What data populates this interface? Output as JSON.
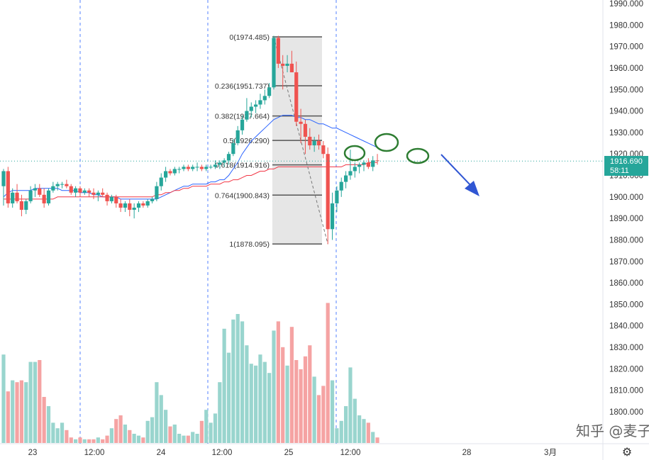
{
  "chart_data": {
    "type": "candlestick",
    "symbol_price": "1916.690",
    "countdown": "58:11",
    "y_axis": {
      "range": [
        1793,
        1992
      ],
      "tick_labels": [
        "1990.000",
        "1980.000",
        "1970.000",
        "1960.000",
        "1950.000",
        "1940.000",
        "1930.000",
        "1920.000",
        "1910.000",
        "1900.000",
        "1890.000",
        "1880.000",
        "1870.000",
        "1860.000",
        "1850.000",
        "1840.000",
        "1830.000",
        "1820.000",
        "1810.000",
        "1800.000"
      ]
    },
    "x_axis": {
      "tick_labels": [
        "23",
        "12:00",
        "24",
        "12:00",
        "25",
        "12:00",
        "28",
        "3月"
      ]
    },
    "current_price": 1916.69,
    "fibonacci": {
      "high": 1974.485,
      "low": 1878.095,
      "levels": [
        {
          "label": "0(1974.485)",
          "value": 1974.485
        },
        {
          "label": "0.236(1951.737)",
          "value": 1951.737
        },
        {
          "label": "0.382(1937.664)",
          "value": 1937.664
        },
        {
          "label": "0.5(1926.290)",
          "value": 1926.29
        },
        {
          "label": "0.618(1914.916)",
          "value": 1914.916
        },
        {
          "label": "0.764(1900.843)",
          "value": 1900.843
        },
        {
          "label": "1(1878.095)",
          "value": 1878.095
        }
      ]
    },
    "candles": [
      {
        "o": 1905,
        "h": 1913,
        "l": 1896,
        "c": 1912
      },
      {
        "o": 1912,
        "h": 1914,
        "l": 1895,
        "c": 1897
      },
      {
        "o": 1897,
        "h": 1904,
        "l": 1895,
        "c": 1902
      },
      {
        "o": 1902,
        "h": 1906,
        "l": 1897,
        "c": 1898
      },
      {
        "o": 1898,
        "h": 1901,
        "l": 1891,
        "c": 1894
      },
      {
        "o": 1894,
        "h": 1899,
        "l": 1892,
        "c": 1898
      },
      {
        "o": 1898,
        "h": 1905,
        "l": 1897,
        "c": 1903
      },
      {
        "o": 1903,
        "h": 1906,
        "l": 1900,
        "c": 1904
      },
      {
        "o": 1904,
        "h": 1906,
        "l": 1900,
        "c": 1901
      },
      {
        "o": 1901,
        "h": 1904,
        "l": 1895,
        "c": 1897
      },
      {
        "o": 1897,
        "h": 1904,
        "l": 1896,
        "c": 1903
      },
      {
        "o": 1903,
        "h": 1907,
        "l": 1902,
        "c": 1905
      },
      {
        "o": 1905,
        "h": 1907,
        "l": 1903,
        "c": 1906
      },
      {
        "o": 1906,
        "h": 1907,
        "l": 1904,
        "c": 1906
      },
      {
        "o": 1906,
        "h": 1908,
        "l": 1904,
        "c": 1905
      },
      {
        "o": 1905,
        "h": 1906,
        "l": 1901,
        "c": 1902
      },
      {
        "o": 1902,
        "h": 1905,
        "l": 1900,
        "c": 1904
      },
      {
        "o": 1904,
        "h": 1905,
        "l": 1900,
        "c": 1902
      },
      {
        "o": 1902,
        "h": 1904,
        "l": 1901,
        "c": 1903
      },
      {
        "o": 1903,
        "h": 1904,
        "l": 1900,
        "c": 1902
      },
      {
        "o": 1902,
        "h": 1904,
        "l": 1899,
        "c": 1901
      },
      {
        "o": 1901,
        "h": 1903,
        "l": 1898,
        "c": 1902
      },
      {
        "o": 1902,
        "h": 1904,
        "l": 1900,
        "c": 1901
      },
      {
        "o": 1901,
        "h": 1902,
        "l": 1896,
        "c": 1898
      },
      {
        "o": 1898,
        "h": 1901,
        "l": 1897,
        "c": 1900
      },
      {
        "o": 1900,
        "h": 1901,
        "l": 1895,
        "c": 1897
      },
      {
        "o": 1897,
        "h": 1899,
        "l": 1893,
        "c": 1895
      },
      {
        "o": 1895,
        "h": 1898,
        "l": 1893,
        "c": 1897
      },
      {
        "o": 1897,
        "h": 1899,
        "l": 1891,
        "c": 1894
      },
      {
        "o": 1894,
        "h": 1897,
        "l": 1890,
        "c": 1895
      },
      {
        "o": 1895,
        "h": 1898,
        "l": 1893,
        "c": 1897
      },
      {
        "o": 1897,
        "h": 1898,
        "l": 1895,
        "c": 1896
      },
      {
        "o": 1896,
        "h": 1899,
        "l": 1895,
        "c": 1898
      },
      {
        "o": 1898,
        "h": 1900,
        "l": 1897,
        "c": 1899
      },
      {
        "o": 1899,
        "h": 1907,
        "l": 1898,
        "c": 1905
      },
      {
        "o": 1905,
        "h": 1911,
        "l": 1903,
        "c": 1909
      },
      {
        "o": 1909,
        "h": 1914,
        "l": 1907,
        "c": 1912
      },
      {
        "o": 1912,
        "h": 1913,
        "l": 1910,
        "c": 1911
      },
      {
        "o": 1911,
        "h": 1914,
        "l": 1910,
        "c": 1913
      },
      {
        "o": 1913,
        "h": 1914,
        "l": 1911,
        "c": 1913
      },
      {
        "o": 1913,
        "h": 1915,
        "l": 1912,
        "c": 1914
      },
      {
        "o": 1914,
        "h": 1915,
        "l": 1912,
        "c": 1913
      },
      {
        "o": 1913,
        "h": 1915,
        "l": 1912,
        "c": 1914
      },
      {
        "o": 1914,
        "h": 1916,
        "l": 1912,
        "c": 1914
      },
      {
        "o": 1914,
        "h": 1915,
        "l": 1912,
        "c": 1913
      },
      {
        "o": 1913,
        "h": 1915,
        "l": 1912,
        "c": 1914
      },
      {
        "o": 1914,
        "h": 1915,
        "l": 1913,
        "c": 1914
      },
      {
        "o": 1914,
        "h": 1917,
        "l": 1913,
        "c": 1915
      },
      {
        "o": 1915,
        "h": 1917,
        "l": 1913,
        "c": 1916
      },
      {
        "o": 1916,
        "h": 1918,
        "l": 1914,
        "c": 1917
      },
      {
        "o": 1917,
        "h": 1921,
        "l": 1915,
        "c": 1920
      },
      {
        "o": 1920,
        "h": 1927,
        "l": 1919,
        "c": 1925
      },
      {
        "o": 1925,
        "h": 1933,
        "l": 1924,
        "c": 1931
      },
      {
        "o": 1931,
        "h": 1938,
        "l": 1929,
        "c": 1936
      },
      {
        "o": 1936,
        "h": 1946,
        "l": 1935,
        "c": 1940
      },
      {
        "o": 1940,
        "h": 1944,
        "l": 1937,
        "c": 1942
      },
      {
        "o": 1942,
        "h": 1945,
        "l": 1939,
        "c": 1943
      },
      {
        "o": 1943,
        "h": 1948,
        "l": 1941,
        "c": 1945
      },
      {
        "o": 1945,
        "h": 1950,
        "l": 1943,
        "c": 1947
      },
      {
        "o": 1947,
        "h": 1953,
        "l": 1946,
        "c": 1951
      },
      {
        "o": 1951,
        "h": 1975,
        "l": 1950,
        "c": 1974
      },
      {
        "o": 1974,
        "h": 1975,
        "l": 1960,
        "c": 1962
      },
      {
        "o": 1962,
        "h": 1966,
        "l": 1950,
        "c": 1961
      },
      {
        "o": 1961,
        "h": 1966,
        "l": 1958,
        "c": 1962
      },
      {
        "o": 1962,
        "h": 1968,
        "l": 1958,
        "c": 1958
      },
      {
        "o": 1958,
        "h": 1963,
        "l": 1933,
        "c": 1935
      },
      {
        "o": 1935,
        "h": 1941,
        "l": 1925,
        "c": 1934
      },
      {
        "o": 1934,
        "h": 1936,
        "l": 1920,
        "c": 1928
      },
      {
        "o": 1928,
        "h": 1932,
        "l": 1922,
        "c": 1924
      },
      {
        "o": 1924,
        "h": 1928,
        "l": 1921,
        "c": 1926
      },
      {
        "o": 1926,
        "h": 1929,
        "l": 1922,
        "c": 1924
      },
      {
        "o": 1924,
        "h": 1926,
        "l": 1918,
        "c": 1920
      },
      {
        "o": 1920,
        "h": 1923,
        "l": 1878,
        "c": 1885
      },
      {
        "o": 1885,
        "h": 1902,
        "l": 1880,
        "c": 1897
      },
      {
        "o": 1897,
        "h": 1905,
        "l": 1893,
        "c": 1903
      },
      {
        "o": 1903,
        "h": 1909,
        "l": 1900,
        "c": 1907
      },
      {
        "o": 1907,
        "h": 1912,
        "l": 1904,
        "c": 1910
      },
      {
        "o": 1910,
        "h": 1922,
        "l": 1908,
        "c": 1912
      },
      {
        "o": 1912,
        "h": 1916,
        "l": 1909,
        "c": 1914
      },
      {
        "o": 1914,
        "h": 1916,
        "l": 1911,
        "c": 1915
      },
      {
        "o": 1915,
        "h": 1917,
        "l": 1912,
        "c": 1916
      },
      {
        "o": 1916,
        "h": 1918,
        "l": 1913,
        "c": 1914
      },
      {
        "o": 1914,
        "h": 1919,
        "l": 1912,
        "c": 1917
      },
      {
        "o": 1917,
        "h": 1920,
        "l": 1915,
        "c": 1916.69
      }
    ],
    "volumes": [
      48,
      28,
      34,
      33,
      34,
      33,
      44,
      44,
      45,
      25,
      20,
      11,
      8,
      11,
      7,
      3,
      2,
      3,
      2,
      2,
      2,
      3,
      2,
      4,
      8,
      13,
      15,
      10,
      7,
      5,
      4,
      3,
      12,
      14,
      33,
      26,
      18,
      9,
      10,
      5,
      4,
      4,
      6,
      5,
      12,
      18,
      11,
      16,
      33,
      62,
      49,
      67,
      70,
      66,
      53,
      43,
      42,
      48,
      44,
      38,
      61,
      66,
      52,
      42,
      63,
      45,
      40,
      47,
      53,
      36,
      26,
      31,
      76,
      34,
      8,
      12,
      20,
      41,
      24,
      15,
      13,
      11,
      6,
      3
    ],
    "ma_lines": [
      {
        "name": "MA-blue",
        "color": "#2962ff",
        "values": [
          1900,
          1902,
          1903,
          1903,
          1903,
          1903,
          1903,
          1904,
          1904,
          1904,
          1904,
          1904,
          1904,
          1903,
          1903,
          1903,
          1903,
          1902,
          1902,
          1902,
          1901,
          1901,
          1900,
          1900,
          1900,
          1900,
          1899,
          1899,
          1899,
          1899,
          1899,
          1899,
          1899,
          1899,
          1899,
          1900,
          1901,
          1902,
          1903,
          1904,
          1905,
          1905,
          1906,
          1906,
          1906,
          1906,
          1907,
          1907,
          1908,
          1908,
          1910,
          1913,
          1916,
          1920,
          1923,
          1926,
          1928,
          1930,
          1932,
          1934,
          1936,
          1937,
          1938,
          1938,
          1938,
          1937,
          1937,
          1936,
          1936,
          1935,
          1934,
          1934,
          1933,
          1932,
          1932,
          1931,
          1930,
          1929,
          1928,
          1927,
          1926,
          1925,
          1924,
          1923
        ]
      },
      {
        "name": "MA-red",
        "color": "#f23645",
        "values": [
          1899,
          1899,
          1899,
          1899,
          1899,
          1899,
          1899,
          1899,
          1899,
          1899,
          1899,
          1899,
          1900,
          1900,
          1900,
          1900,
          1900,
          1900,
          1900,
          1900,
          1900,
          1900,
          1900,
          1900,
          1900,
          1900,
          1900,
          1900,
          1900,
          1900,
          1900,
          1900,
          1900,
          1900,
          1901,
          1901,
          1902,
          1902,
          1903,
          1903,
          1904,
          1904,
          1905,
          1905,
          1905,
          1905,
          1906,
          1906,
          1906,
          1907,
          1907,
          1908,
          1908,
          1909,
          1910,
          1910,
          1911,
          1912,
          1912,
          1913,
          1913,
          1914,
          1914,
          1914,
          1914,
          1914,
          1914,
          1914,
          1914,
          1914,
          1914,
          1914,
          1914,
          1914,
          1914,
          1914,
          1915,
          1915,
          1915,
          1915,
          1915,
          1916,
          1916,
          1916
        ]
      }
    ],
    "colors": {
      "up": "#26a69a",
      "down": "#ef5350",
      "up_volume": "#99d5ce",
      "down_volume": "#f5a3a3",
      "session_divider": "#2962ff",
      "annotation_circle": "#2e7d32",
      "arrow": "#3056d3",
      "fib_box": "#e0e0e0",
      "fib_line": "#555555"
    }
  },
  "watermark": "知乎 @麦子",
  "settings_icon": "gear-icon"
}
